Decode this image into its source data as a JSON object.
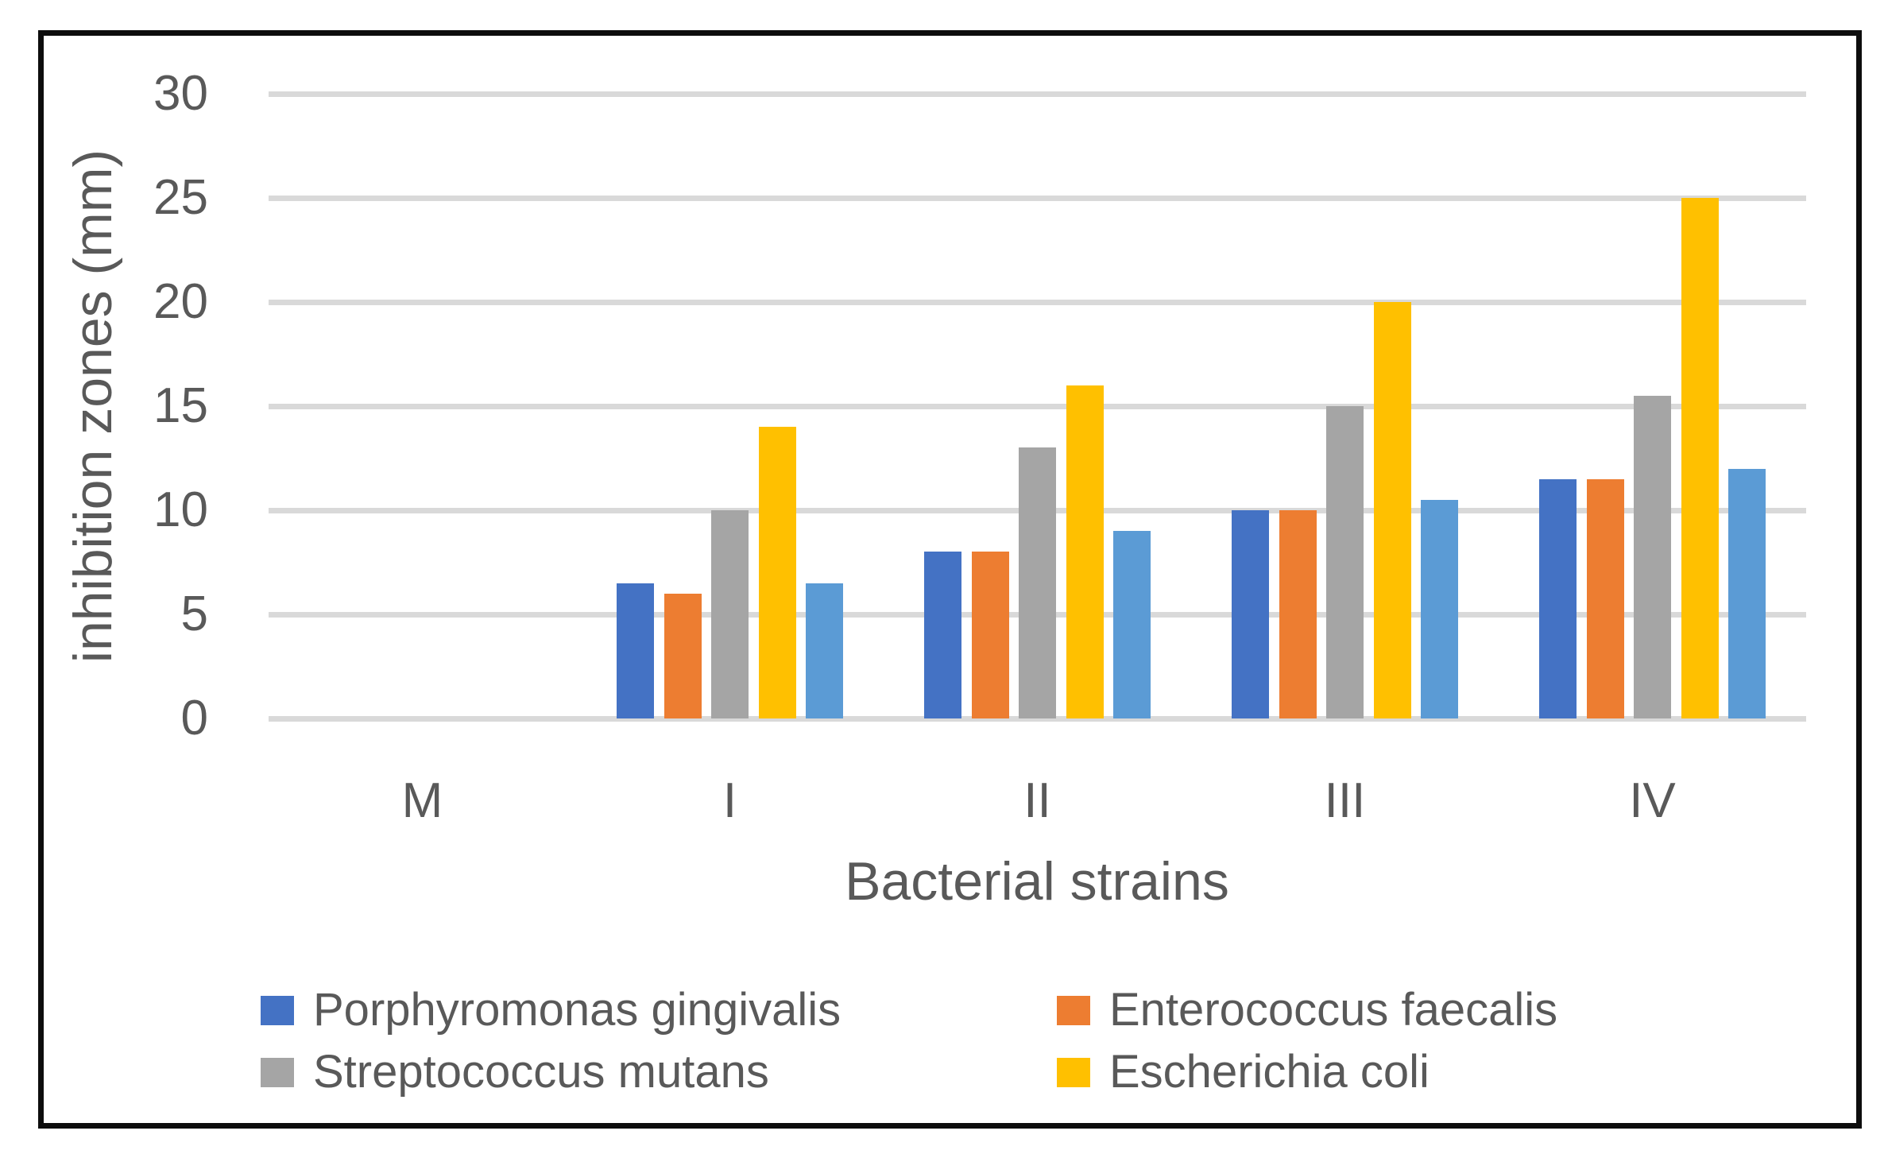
{
  "chart_data": {
    "type": "bar",
    "title": "",
    "xlabel": "Bacterial strains",
    "ylabel": "inhibition zones (mm)",
    "ylim": [
      0,
      30
    ],
    "yticks": [
      0,
      5,
      10,
      15,
      20,
      25,
      30
    ],
    "grid": true,
    "categories": [
      "M",
      "I",
      "II",
      "III",
      "IV"
    ],
    "series": [
      {
        "name": "Porphyromonas gingivalis",
        "color": "#4472c4",
        "in_legend": true,
        "values": [
          0,
          6.5,
          8,
          10,
          11.5
        ]
      },
      {
        "name": "Enterococcus faecalis",
        "color": "#ed7d31",
        "in_legend": true,
        "values": [
          0,
          6,
          8,
          10,
          11.5
        ]
      },
      {
        "name": "Streptococcus mutans",
        "color": "#a5a5a5",
        "in_legend": true,
        "values": [
          0,
          10,
          13,
          15,
          15.5
        ]
      },
      {
        "name": "Escherichia coli",
        "color": "#ffc000",
        "in_legend": true,
        "values": [
          0,
          14,
          16,
          20,
          25
        ]
      },
      {
        "name": "",
        "color": "#5b9bd5",
        "in_legend": false,
        "values": [
          0,
          6.5,
          9,
          10.5,
          12
        ]
      }
    ],
    "legend": {
      "position": "bottom",
      "columns": 2
    }
  },
  "colors": {
    "axis_text": "#595959",
    "gridline": "#d9d9d9",
    "frame_border": "#0d0d0d",
    "background": "#ffffff"
  }
}
